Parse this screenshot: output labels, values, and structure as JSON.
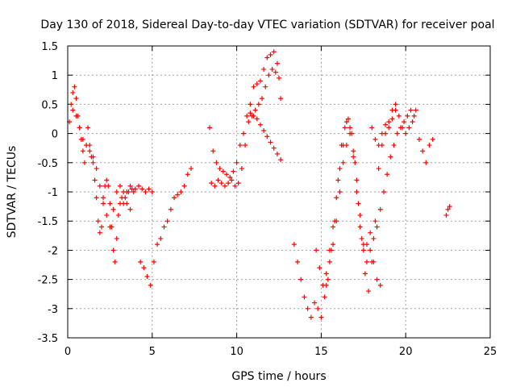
{
  "chart_data": {
    "type": "scatter",
    "title": "Day 130 of 2018, Sidereal Day-to-day VTEC variation (SDTVAR) for receiver poal",
    "xlabel": "GPS time / hours",
    "ylabel": "SDTVAR / TECUs",
    "xlim": [
      0,
      25
    ],
    "ylim": [
      -3.5,
      1.5
    ],
    "xticks": [
      0,
      5,
      10,
      15,
      20,
      25
    ],
    "yticks": [
      1.5,
      1,
      0.5,
      0,
      -0.5,
      -1,
      -1.5,
      -2,
      -2.5,
      -3,
      -3.5
    ],
    "xtick_labels": [
      "0",
      "5",
      "10",
      "15",
      "20",
      "25"
    ],
    "ytick_labels": [
      "1.5",
      "1",
      "0.5",
      "0",
      "-0.5",
      "-1",
      "-1.5",
      "-2",
      "-2.5",
      "-3",
      "-3.5"
    ],
    "grid": true,
    "marker": "+",
    "color": "#ff0000",
    "series": [
      {
        "x": [
          0.1,
          0.2,
          0.3,
          0.4,
          0.5,
          0.6,
          0.7,
          0.8,
          0.9,
          1.0,
          1.1,
          1.2,
          1.3,
          1.4,
          1.5,
          1.6,
          1.7,
          1.8,
          1.9,
          2.0,
          2.1,
          2.2,
          2.3,
          2.4,
          2.5,
          2.6,
          2.7,
          2.8,
          2.9,
          3.0,
          3.1,
          3.2,
          3.3,
          3.4,
          3.5,
          3.6,
          3.7,
          3.8,
          3.9,
          4.0,
          4.2,
          4.4,
          4.6,
          4.8,
          5.0
        ],
        "y": [
          0.2,
          0.5,
          0.7,
          0.8,
          0.6,
          0.3,
          0.1,
          -0.1,
          -0.3,
          -0.5,
          -0.2,
          0.1,
          -0.2,
          -0.4,
          -0.5,
          -0.8,
          -1.1,
          -1.5,
          -1.7,
          -1.6,
          -1.2,
          -0.9,
          -0.8,
          -0.9,
          -1.2,
          -1.6,
          -2.0,
          -2.2,
          -1.8,
          -1.4,
          -1.2,
          -1.1,
          -1.2,
          -1.1,
          -1.0,
          -1.0,
          -0.9,
          -0.95,
          -1.0,
          -0.95,
          -0.9,
          -0.95,
          -1.0,
          -0.95,
          -1.0
        ]
      },
      {
        "x": [
          0.3,
          0.5,
          0.7,
          0.9,
          1.1,
          1.3,
          1.5,
          1.7,
          1.9,
          2.1,
          2.3,
          2.5,
          2.7,
          2.9,
          3.1,
          3.3,
          3.5,
          3.7
        ],
        "y": [
          0.4,
          0.3,
          0.1,
          -0.1,
          -0.2,
          -0.3,
          -0.4,
          -0.6,
          -0.9,
          -1.1,
          -1.4,
          -1.6,
          -1.3,
          -1.0,
          -0.9,
          -1.0,
          -1.2,
          -1.3
        ]
      },
      {
        "x": [
          4.3,
          4.5,
          4.7,
          4.9,
          5.1,
          5.3,
          5.5,
          5.7,
          5.9,
          6.1,
          6.3,
          6.5,
          6.7,
          6.9,
          7.1,
          7.3
        ],
        "y": [
          -2.2,
          -2.3,
          -2.45,
          -2.6,
          -2.2,
          -1.9,
          -1.8,
          -1.6,
          -1.5,
          -1.3,
          -1.1,
          -1.05,
          -1.0,
          -0.9,
          -0.7,
          -0.6
        ]
      },
      {
        "x": [
          8.4,
          8.6,
          8.8,
          9.0,
          9.2,
          9.4,
          9.6,
          9.8,
          10.0,
          10.2,
          10.4,
          10.6,
          10.8,
          11.0,
          11.2,
          11.4,
          11.6,
          11.8,
          12.0,
          12.2,
          12.4,
          12.6
        ],
        "y": [
          0.1,
          -0.3,
          -0.5,
          -0.6,
          -0.65,
          -0.7,
          -0.75,
          -0.65,
          -0.5,
          -0.2,
          0.0,
          0.3,
          0.5,
          0.8,
          0.85,
          0.9,
          1.1,
          1.3,
          1.35,
          1.4,
          1.2,
          0.6
        ]
      },
      {
        "x": [
          8.5,
          8.7,
          8.9,
          9.1,
          9.3,
          9.5,
          9.7,
          9.9,
          10.1,
          10.3,
          10.5,
          10.7,
          10.9,
          11.1,
          11.3,
          11.5,
          11.7,
          11.9,
          12.1,
          12.3,
          12.5
        ],
        "y": [
          -0.85,
          -0.9,
          -0.8,
          -0.85,
          -0.9,
          -0.85,
          -0.8,
          -0.9,
          -0.85,
          -0.6,
          -0.2,
          0.2,
          0.3,
          0.4,
          0.5,
          0.6,
          0.8,
          1.0,
          1.1,
          1.05,
          0.95
        ]
      },
      {
        "x": [
          10.8,
          11.0,
          11.2,
          11.4,
          11.6,
          11.8,
          12.0,
          12.2,
          12.4,
          12.6
        ],
        "y": [
          0.35,
          0.3,
          0.25,
          0.15,
          0.05,
          -0.05,
          -0.15,
          -0.25,
          -0.35,
          -0.45
        ]
      },
      {
        "x": [
          13.4,
          13.6,
          13.8,
          14.0,
          14.2,
          14.4
        ],
        "y": [
          -1.9,
          -2.2,
          -2.5,
          -2.8,
          -3.0,
          -3.15
        ]
      },
      {
        "x": [
          14.6,
          14.8,
          15.0,
          15.2,
          15.4,
          15.6,
          15.8,
          16.0,
          16.2,
          16.4,
          16.6,
          16.8,
          17.0,
          17.2,
          17.4,
          17.6,
          17.8,
          18.0,
          18.2,
          18.4,
          18.6,
          18.8,
          19.0,
          19.2,
          19.4
        ],
        "y": [
          -2.9,
          -3.0,
          -3.15,
          -2.8,
          -2.5,
          -2.0,
          -1.5,
          -0.8,
          -0.2,
          0.1,
          0.25,
          0.0,
          -0.5,
          -1.2,
          -1.8,
          -2.4,
          -2.7,
          -2.2,
          -1.5,
          -0.6,
          -0.2,
          0.0,
          0.2,
          0.4,
          0.5
        ]
      },
      {
        "x": [
          14.7,
          14.9,
          15.1,
          15.3,
          15.5,
          15.7,
          15.9,
          16.1,
          16.3,
          16.5,
          16.7,
          16.9,
          17.1,
          17.3,
          17.5,
          17.7,
          17.9,
          18.1,
          18.3,
          18.5,
          18.7,
          18.9,
          19.1,
          19.3,
          19.5,
          19.7,
          19.9,
          20.1,
          20.3,
          20.5
        ],
        "y": [
          -2.0,
          -2.3,
          -2.6,
          -2.4,
          -2.2,
          -1.9,
          -1.5,
          -1.0,
          -0.5,
          -0.2,
          0.0,
          -0.3,
          -0.8,
          -1.4,
          -1.9,
          -2.2,
          -2.0,
          -1.8,
          -1.6,
          -1.3,
          -1.0,
          -0.7,
          -0.4,
          -0.2,
          0.0,
          0.1,
          0.2,
          0.3,
          0.4,
          0.3
        ]
      },
      {
        "x": [
          15.3,
          15.5,
          15.7,
          15.9,
          16.1,
          16.3,
          16.5,
          16.7,
          16.9,
          17.1,
          17.3,
          17.5,
          17.7,
          17.9,
          18.1,
          18.3,
          18.5
        ],
        "y": [
          -2.6,
          -2.0,
          -1.6,
          -1.1,
          -0.6,
          -0.2,
          0.2,
          0.1,
          -0.4,
          -1.0,
          -1.6,
          -2.0,
          -1.9,
          -1.7,
          -2.2,
          -2.5,
          -2.6
        ]
      },
      {
        "x": [
          18.0,
          18.2,
          18.4,
          18.6,
          18.8,
          19.0,
          19.2,
          19.4,
          19.6,
          19.8,
          20.0,
          20.2,
          20.4,
          20.6
        ],
        "y": [
          0.1,
          -0.1,
          -0.2,
          0.0,
          0.15,
          0.1,
          0.25,
          0.4,
          0.3,
          0.1,
          0.0,
          0.1,
          0.2,
          0.4
        ]
      },
      {
        "x": [
          20.8,
          21.0,
          21.2,
          21.4,
          21.6,
          22.4,
          22.5,
          22.6
        ],
        "y": [
          -0.1,
          -0.3,
          -0.5,
          -0.2,
          -0.1,
          -1.4,
          -1.3,
          -1.25
        ]
      }
    ]
  }
}
